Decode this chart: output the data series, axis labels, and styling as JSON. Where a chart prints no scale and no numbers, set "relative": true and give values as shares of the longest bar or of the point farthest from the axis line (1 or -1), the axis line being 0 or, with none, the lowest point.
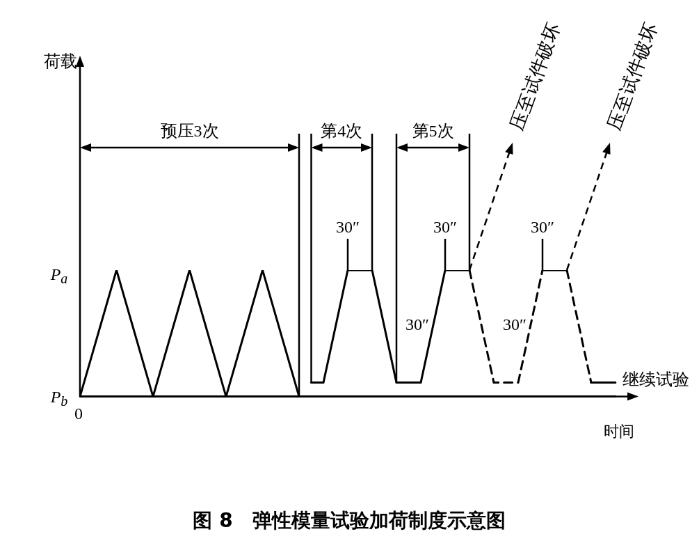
{
  "chart_data": {
    "type": "line",
    "relative": true,
    "title": "图 8　弹性模量试验加荷制度示意图",
    "xlabel": "时间",
    "marker": "none",
    "categories": [
      null,
      null,
      null,
      null,
      null,
      null,
      null,
      null,
      null,
      null,
      null,
      null,
      null,
      null,
      null,
      null,
      null,
      null,
      null,
      null,
      null,
      null,
      null,
      null,
      null,
      null,
      null,
      null,
      null,
      null,
      null,
      null,
      null,
      null,
      null,
      null,
      null,
      null,
      null,
      null,
      null,
      null,
      null,
      null,
      null
    ],
    "series": [
      {
        "color": "#000000",
        "line_style": "solid",
        "values": [
          0,
          null,
          null,
          1,
          null,
          null,
          0,
          null,
          null,
          1,
          null,
          null,
          0,
          null,
          null,
          1,
          null,
          null,
          0,
          null,
          null,
          null,
          null,
          null,
          null,
          null,
          null,
          null,
          null,
          null,
          null,
          null,
          null,
          null,
          null,
          null,
          null,
          null,
          null,
          null,
          null,
          null,
          null,
          null,
          null
        ]
      },
      {
        "color": "#000000",
        "line_style": "solid",
        "values": [
          null,
          null,
          null,
          null,
          null,
          null,
          null,
          null,
          null,
          null,
          null,
          null,
          null,
          null,
          null,
          null,
          null,
          null,
          null,
          0.11,
          0.11,
          null,
          1,
          null,
          1,
          null,
          0.11,
          null,
          0.11,
          null,
          1,
          null,
          1,
          null,
          null,
          null,
          null,
          null,
          null,
          null,
          null,
          null,
          null,
          null,
          null
        ]
      },
      {
        "color": "#000000",
        "line_style": "dashed",
        "values": [
          null,
          null,
          null,
          null,
          null,
          null,
          null,
          null,
          null,
          null,
          null,
          null,
          null,
          null,
          null,
          null,
          null,
          null,
          null,
          null,
          null,
          null,
          null,
          null,
          null,
          null,
          null,
          null,
          null,
          null,
          null,
          null,
          1,
          null,
          0.11,
          null,
          0.11,
          null,
          1,
          null,
          null,
          null,
          null,
          null,
          null
        ]
      },
      {
        "color": "#000000",
        "line_style": "solid",
        "values": [
          null,
          null,
          null,
          null,
          null,
          null,
          null,
          null,
          null,
          null,
          null,
          null,
          null,
          null,
          null,
          null,
          null,
          null,
          null,
          null,
          null,
          null,
          null,
          null,
          null,
          null,
          null,
          null,
          null,
          null,
          null,
          null,
          null,
          null,
          null,
          null,
          null,
          null,
          1,
          null,
          1,
          null,
          null,
          null,
          null
        ]
      },
      {
        "color": "#000000",
        "line_style": "dashed",
        "values": [
          null,
          null,
          null,
          null,
          null,
          null,
          null,
          null,
          null,
          null,
          null,
          null,
          null,
          null,
          null,
          null,
          null,
          null,
          null,
          null,
          null,
          null,
          null,
          null,
          null,
          null,
          null,
          null,
          null,
          null,
          null,
          null,
          null,
          null,
          null,
          null,
          null,
          null,
          null,
          null,
          1,
          null,
          0.11,
          null,
          null
        ]
      },
      {
        "color": "#000000",
        "line_style": "solid",
        "values": [
          null,
          null,
          null,
          null,
          null,
          null,
          null,
          null,
          null,
          null,
          null,
          null,
          null,
          null,
          null,
          null,
          null,
          null,
          null,
          null,
          null,
          null,
          null,
          null,
          null,
          null,
          null,
          null,
          null,
          null,
          null,
          null,
          null,
          null,
          null,
          null,
          null,
          null,
          null,
          null,
          null,
          null,
          0.11,
          null,
          0.11
        ]
      }
    ],
    "annotations": [
      "预压3次",
      "第4次",
      "第5次",
      "30″",
      "30″",
      "30″",
      "30″",
      "30″",
      "压至试件破坏",
      "压至试件破坏",
      "继续试验",
      "P$_{a}$",
      "P$_{b}$",
      "0",
      "荷载"
    ]
  }
}
